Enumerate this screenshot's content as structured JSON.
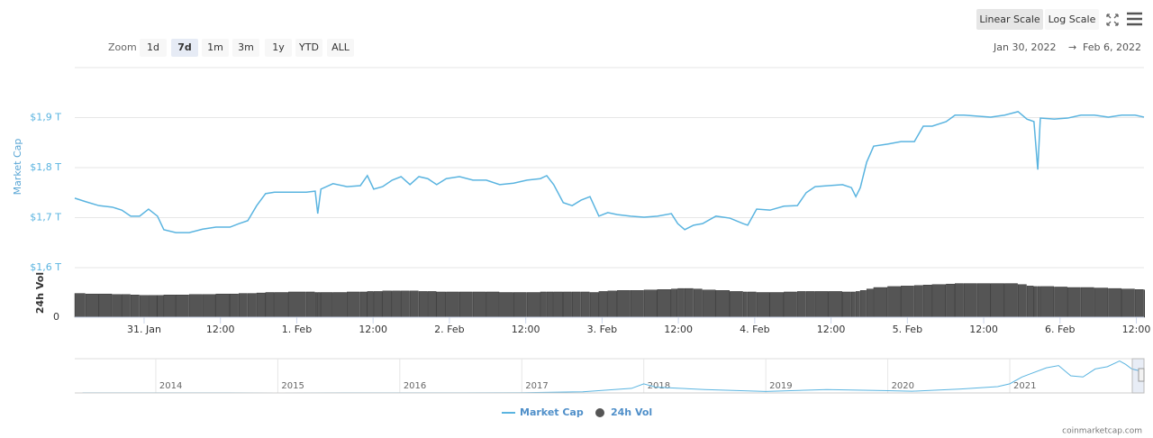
{
  "chart_data": {
    "type": "line",
    "range_selector": {
      "label": "Zoom",
      "buttons": [
        "1d",
        "7d",
        "1m",
        "3m",
        "1y",
        "YTD",
        "ALL"
      ],
      "selected": 1
    },
    "scale_buttons": [
      "Linear Scale",
      "Log Scale"
    ],
    "date_range": {
      "from": "Jan 30, 2022",
      "arrow": "→",
      "to": "Feb 6, 2022"
    },
    "y_label": "Market Cap",
    "y2_label": "24h Vol",
    "credit": "coinmarketcap.com",
    "xlim": [
      -10.9,
      157.2
    ],
    "xticks": [
      {
        "value": 0,
        "label": "31. Jan"
      },
      {
        "value": 12,
        "label": "12:00"
      },
      {
        "value": 24,
        "label": "1. Feb"
      },
      {
        "value": 36,
        "label": "12:00"
      },
      {
        "value": 48,
        "label": "2. Feb"
      },
      {
        "value": 60,
        "label": "12:00"
      },
      {
        "value": 72,
        "label": "3. Feb"
      },
      {
        "value": 84,
        "label": "12:00"
      },
      {
        "value": 96,
        "label": "4. Feb"
      },
      {
        "value": 108,
        "label": "12:00"
      },
      {
        "value": 120,
        "label": "5. Feb"
      },
      {
        "value": 132,
        "label": "12:00"
      },
      {
        "value": 144,
        "label": "6. Feb"
      },
      {
        "value": 156,
        "label": "12:00"
      }
    ],
    "ylim": [
      1.6,
      2.0
    ],
    "yticks": [
      {
        "value": 1.6,
        "label": "$1,6 T"
      },
      {
        "value": 1.7,
        "label": "$1,7 T"
      },
      {
        "value": 1.8,
        "label": "$1,8 T"
      },
      {
        "value": 1.9,
        "label": "$1,9 T"
      }
    ],
    "y2lim": [
      0,
      100
    ],
    "y2ticks": [
      0
    ],
    "grid": true,
    "x": [
      -10.9,
      -9.2,
      -7.1,
      -5.0,
      -3.5,
      -2.1,
      -0.7,
      0.7,
      2.1,
      3.1,
      5.0,
      7.1,
      9.2,
      11.3,
      13.5,
      14.9,
      16.3,
      17.7,
      19.1,
      20.5,
      22.7,
      25.5,
      26.9,
      27.3,
      27.8,
      29.7,
      31.9,
      34.0,
      35.1,
      36.1,
      37.5,
      39.0,
      40.4,
      41.8,
      43.2,
      44.6,
      46.0,
      47.5,
      49.6,
      51.7,
      53.8,
      55.9,
      58.1,
      60.2,
      62.3,
      63.3,
      64.4,
      65.9,
      67.3,
      68.7,
      70.1,
      71.5,
      72.9,
      74.4,
      76.5,
      78.6,
      80.7,
      82.9,
      83.9,
      85.0,
      86.4,
      87.8,
      89.9,
      92.1,
      94.2,
      94.9,
      96.3,
      98.4,
      100.6,
      102.7,
      104.1,
      105.5,
      107.6,
      109.8,
      111.2,
      111.9,
      112.6,
      113.6,
      114.7,
      116.9,
      119.0,
      121.1,
      122.5,
      123.9,
      126.1,
      127.5,
      128.9,
      131.0,
      133.1,
      135.3,
      137.4,
      138.8,
      139.9,
      140.5,
      140.9,
      143.1,
      145.2,
      147.3,
      149.4,
      151.6,
      153.7,
      155.8,
      157.2
    ],
    "series": [
      {
        "name": "Market Cap",
        "color": "#5ab4e0",
        "values": [
          1.739,
          1.732,
          1.724,
          1.721,
          1.715,
          1.703,
          1.703,
          1.717,
          1.703,
          1.676,
          1.67,
          1.67,
          1.677,
          1.681,
          1.681,
          1.688,
          1.694,
          1.724,
          1.748,
          1.751,
          1.751,
          1.751,
          1.753,
          1.708,
          1.757,
          1.768,
          1.762,
          1.764,
          1.784,
          1.757,
          1.762,
          1.775,
          1.782,
          1.766,
          1.782,
          1.778,
          1.766,
          1.778,
          1.782,
          1.775,
          1.775,
          1.766,
          1.769,
          1.775,
          1.778,
          1.784,
          1.766,
          1.73,
          1.724,
          1.735,
          1.742,
          1.703,
          1.71,
          1.706,
          1.703,
          1.701,
          1.703,
          1.708,
          1.688,
          1.676,
          1.685,
          1.688,
          1.703,
          1.699,
          1.688,
          1.685,
          1.717,
          1.715,
          1.723,
          1.724,
          1.75,
          1.762,
          1.764,
          1.766,
          1.76,
          1.742,
          1.76,
          1.811,
          1.843,
          1.847,
          1.852,
          1.852,
          1.883,
          1.883,
          1.892,
          1.905,
          1.905,
          1.903,
          1.901,
          1.905,
          1.912,
          1.897,
          1.892,
          1.796,
          1.899,
          1.897,
          1.899,
          1.905,
          1.905,
          1.901,
          1.905,
          1.905,
          1.901
        ]
      },
      {
        "name": "24h Vol",
        "color": "#555555",
        "axis": "y2",
        "values": [
          48,
          47,
          47,
          46,
          46,
          45,
          44,
          44,
          44,
          45,
          45,
          46,
          46,
          47,
          47,
          48,
          48,
          49,
          50,
          50,
          51,
          51,
          50,
          50,
          50,
          50,
          51,
          51,
          52,
          52,
          53,
          53,
          53,
          53,
          52,
          52,
          51,
          51,
          51,
          51,
          51,
          50,
          50,
          50,
          51,
          51,
          51,
          51,
          51,
          51,
          50,
          52,
          53,
          54,
          54,
          55,
          56,
          57,
          58,
          58,
          57,
          55,
          54,
          52,
          51,
          51,
          50,
          50,
          51,
          52,
          52,
          52,
          52,
          51,
          51,
          52,
          54,
          57,
          60,
          62,
          63,
          64,
          65,
          66,
          67,
          68,
          68,
          68,
          68,
          68,
          66,
          63,
          62,
          62,
          62,
          61,
          60,
          60,
          59,
          58,
          57,
          56,
          55
        ]
      }
    ],
    "legend": "bottom",
    "navigator": {
      "xlim": [
        2013.336,
        2022.1
      ],
      "xticks": [
        2014,
        2015,
        2016,
        2017,
        2018,
        2019,
        2020,
        2021
      ],
      "ylim": [
        0,
        3
      ],
      "x": [
        2013.4,
        2014,
        2015,
        2016,
        2017,
        2017.5,
        2017.9,
        2018.0,
        2018.1,
        2018.5,
        2019,
        2019.5,
        2020,
        2020.2,
        2020.6,
        2020.9,
        2021.0,
        2021.1,
        2021.3,
        2021.4,
        2021.5,
        2021.6,
        2021.7,
        2021.8,
        2021.9,
        2021.95,
        2022.0,
        2022.08
      ],
      "values": [
        0.01,
        0.01,
        0.005,
        0.007,
        0.018,
        0.1,
        0.4,
        0.8,
        0.5,
        0.3,
        0.13,
        0.3,
        0.2,
        0.15,
        0.35,
        0.55,
        0.8,
        1.4,
        2.2,
        2.4,
        1.5,
        1.4,
        2.1,
        2.3,
        2.8,
        2.5,
        2.1,
        1.9
      ]
    }
  }
}
